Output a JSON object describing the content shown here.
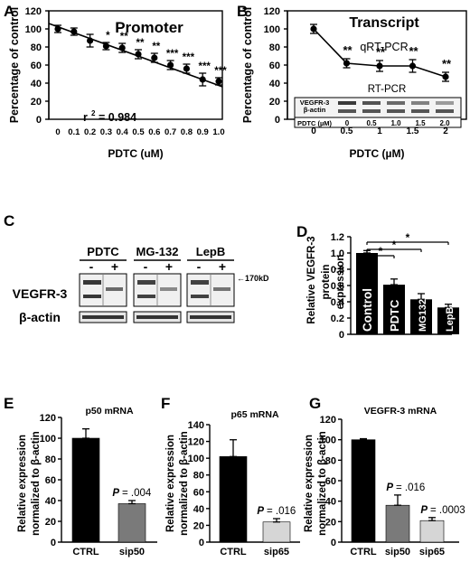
{
  "chart_data": [
    {
      "panel": "A",
      "type": "scatter",
      "title": "Promoter",
      "xlabel": "PDTC (uM)",
      "ylabel": "Percentage of control",
      "ylim": [
        0,
        120
      ],
      "yticks": [
        "0",
        "20",
        "40",
        "60",
        "80",
        "100",
        "120"
      ],
      "x": [
        "0",
        "0.1",
        "0.2",
        "0.3",
        "0.4",
        "0.5",
        "0.6",
        "0.7",
        "0.8",
        "0.9",
        "1.0"
      ],
      "values": [
        100,
        97,
        87,
        81,
        79,
        72,
        68,
        60,
        56,
        44,
        42
      ],
      "errors": [
        4,
        4,
        7,
        4,
        5,
        5,
        5,
        5,
        5,
        7,
        4
      ],
      "significance": [
        "",
        "",
        "",
        "*",
        "**",
        "**",
        "**",
        "***",
        "***",
        "***",
        "***"
      ],
      "trendline": [
        106,
        36
      ],
      "annotation": "r",
      "annotation_sup": "2",
      "annotation_value": "= 0.984",
      "grid": false
    },
    {
      "panel": "B",
      "type": "line",
      "title": "Transcript",
      "subtitle": "qRT-PCR",
      "xlabel": "PDTC (µM)",
      "ylabel": "Percentage of control",
      "ylim": [
        0,
        120
      ],
      "yticks": [
        "0",
        "20",
        "40",
        "60",
        "80",
        "100",
        "120"
      ],
      "x": [
        "0",
        "0.5",
        "1",
        "1.5",
        "2"
      ],
      "values": [
        100,
        62,
        59,
        59,
        47
      ],
      "errors": [
        5,
        5,
        6,
        7,
        5
      ],
      "significance": [
        "",
        "**",
        "**",
        "**",
        "**"
      ],
      "inset": {
        "title": "RT-PCR",
        "rows": [
          "VEGFR-3",
          "β-actin"
        ],
        "label": "PDTC (µM)",
        "doses": [
          "0",
          "0.5",
          "1.0",
          "1.5",
          "2.0"
        ]
      },
      "grid": false
    },
    {
      "panel": "C",
      "type": "table",
      "groups": [
        "PDTC",
        "MG-132",
        "LepB"
      ],
      "lanes": [
        "-",
        "+"
      ],
      "rows": [
        "VEGFR-3",
        "β-actin"
      ],
      "marker": "←170kD"
    },
    {
      "panel": "D",
      "type": "bar",
      "ylabel": "Relative VEGFR-3 protein expression",
      "categories": [
        "Control",
        "PDTC",
        "MG132",
        "LepB"
      ],
      "values": [
        1.0,
        0.61,
        0.43,
        0.33
      ],
      "errors": [
        0.03,
        0.07,
        0.07,
        0.04
      ],
      "ylim": [
        0,
        1.2
      ],
      "yticks": [
        "0",
        "0.2",
        "0.4",
        "0.6",
        "0.8",
        "1.0",
        "1.2"
      ],
      "significance": [
        "*",
        "*",
        "*"
      ],
      "grid": false
    },
    {
      "panel": "E",
      "type": "bar",
      "title": "p50 mRNA",
      "ylabel": "Relative expression normalized to β-actin",
      "categories": [
        "CTRL",
        "sip50"
      ],
      "values": [
        100,
        37
      ],
      "errors": [
        9,
        3
      ],
      "ylim": [
        0,
        120
      ],
      "yticks": [
        "0",
        "20",
        "40",
        "60",
        "80",
        "100",
        "120"
      ],
      "pvalues": [
        "",
        "= .004"
      ],
      "colors": [
        "#000000",
        "#7a7a7a"
      ]
    },
    {
      "panel": "F",
      "type": "bar",
      "title": "p65 mRNA",
      "ylabel": "Relative expression normalized to β-actin",
      "categories": [
        "CTRL",
        "sip65"
      ],
      "values": [
        102,
        24
      ],
      "errors": [
        20,
        4
      ],
      "ylim": [
        0,
        140
      ],
      "yticks": [
        "0",
        "20",
        "40",
        "60",
        "80",
        "100",
        "120",
        "140"
      ],
      "pvalues": [
        "",
        "= .016"
      ],
      "colors": [
        "#000000",
        "#d6d6d6"
      ]
    },
    {
      "panel": "G",
      "type": "bar",
      "title": "VEGFR-3 mRNA",
      "ylabel": "Relative expression normalized to β-actin",
      "categories": [
        "CTRL",
        "sip50",
        "sip65"
      ],
      "values": [
        100,
        36,
        21
      ],
      "errors": [
        1,
        10,
        3
      ],
      "ylim": [
        0,
        120
      ],
      "yticks": [
        "0",
        "20",
        "40",
        "60",
        "80",
        "100",
        "120"
      ],
      "pvalues": [
        "",
        "= .016",
        "= .0003"
      ],
      "colors": [
        "#000000",
        "#7a7a7a",
        "#d6d6d6"
      ]
    }
  ],
  "pvalue_prefix": "P",
  "panel_letters": [
    "A",
    "B",
    "C",
    "D",
    "E",
    "F",
    "G"
  ]
}
